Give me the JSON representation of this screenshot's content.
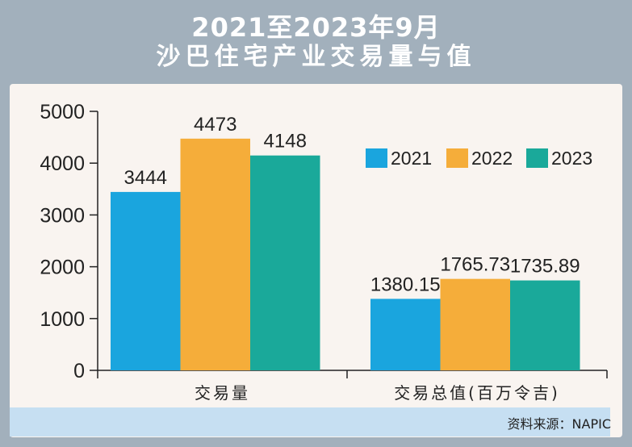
{
  "title": {
    "line1": "2021至2023年9月",
    "line2": "沙巴住宅产业交易量与值"
  },
  "source": "资料来源：NAPIC",
  "colors": {
    "2021": "#1aa5de",
    "2022": "#f5ad3a",
    "2023": "#1aa99a",
    "header": "#a2b0bc",
    "panel": "#f9f4f0",
    "source_bar": "#c6dff2"
  },
  "chart_data": {
    "type": "bar",
    "categories": [
      "交易量",
      "交易总值(百万令吉)"
    ],
    "series": [
      {
        "name": "2021",
        "values": [
          3444,
          1380.15
        ],
        "labels": [
          "3444",
          "1380.15"
        ]
      },
      {
        "name": "2022",
        "values": [
          4473,
          1765.73
        ],
        "labels": [
          "4473",
          "1765.73"
        ]
      },
      {
        "name": "2023",
        "values": [
          4148,
          1735.89
        ],
        "labels": [
          "4148",
          "1735.89"
        ]
      }
    ],
    "ylim": [
      0,
      5000
    ],
    "yticks": [
      "0",
      "1000",
      "2000",
      "3000",
      "4000",
      "5000"
    ],
    "grid": false,
    "legend": "top-right"
  }
}
